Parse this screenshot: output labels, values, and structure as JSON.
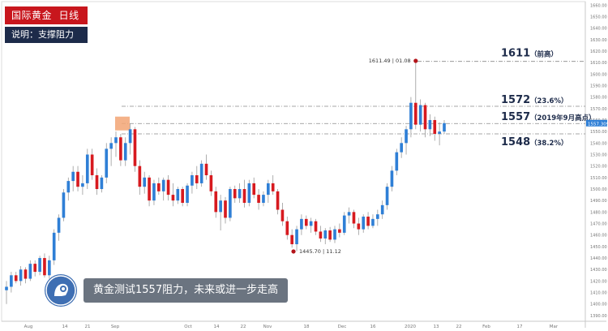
{
  "header": {
    "title": "国际黄金  日线",
    "subtitle": "说明：支撑阻力"
  },
  "caption": {
    "text": "黄金测试1557阻力，未来或进一步走高"
  },
  "colors": {
    "up": "#2f7fd6",
    "down": "#d71a1f",
    "title_bg": "#c8161d",
    "note_bg": "#1d2b4a",
    "caption_bg": "#6b7480",
    "label_text": "#1d2b4a"
  },
  "chart_data": {
    "type": "candlestick",
    "instrument": "国际黄金",
    "timeframe": "日线",
    "x_labels": [
      "Aug",
      "14",
      "21",
      "Sep",
      "Oct",
      "14",
      "22",
      "Nov",
      "18",
      "Dec",
      "16",
      "2020",
      "13",
      "22",
      "Feb",
      "17",
      "Mar"
    ],
    "y_ticks": [
      1390,
      1400,
      1410,
      1420,
      1430,
      1440,
      1450,
      1460,
      1470,
      1480,
      1490,
      1500,
      1510,
      1520,
      1530,
      1540,
      1550,
      1560,
      1570,
      1580,
      1590,
      1600,
      1610,
      1620,
      1630,
      1640,
      1650,
      1660
    ],
    "ylim": [
      1385,
      1663
    ],
    "levels": [
      {
        "value": 1611,
        "label": "1611",
        "note": "（前高）"
      },
      {
        "value": 1572,
        "label": "1572",
        "note": "（23.6%）"
      },
      {
        "value": 1557,
        "label": "1557",
        "note": "（2019年9月高点）"
      },
      {
        "value": 1548,
        "label": "1548",
        "note": "（38.2%）"
      }
    ],
    "annotations": [
      {
        "text": "1611.49 | 01.08",
        "value": 1611.49
      },
      {
        "text": "1445.70 | 11.12",
        "value": 1445.7
      }
    ],
    "current_price": "1557.309",
    "candles": [
      {
        "o": 1412,
        "h": 1420,
        "l": 1400,
        "c": 1415
      },
      {
        "o": 1415,
        "h": 1428,
        "l": 1410,
        "c": 1425
      },
      {
        "o": 1425,
        "h": 1428,
        "l": 1418,
        "c": 1420
      },
      {
        "o": 1420,
        "h": 1433,
        "l": 1416,
        "c": 1430
      },
      {
        "o": 1430,
        "h": 1432,
        "l": 1418,
        "c": 1422
      },
      {
        "o": 1422,
        "h": 1438,
        "l": 1420,
        "c": 1435
      },
      {
        "o": 1435,
        "h": 1438,
        "l": 1424,
        "c": 1428
      },
      {
        "o": 1428,
        "h": 1442,
        "l": 1425,
        "c": 1440
      },
      {
        "o": 1440,
        "h": 1444,
        "l": 1423,
        "c": 1425
      },
      {
        "o": 1425,
        "h": 1442,
        "l": 1422,
        "c": 1438
      },
      {
        "o": 1438,
        "h": 1465,
        "l": 1434,
        "c": 1462
      },
      {
        "o": 1462,
        "h": 1478,
        "l": 1455,
        "c": 1475
      },
      {
        "o": 1475,
        "h": 1500,
        "l": 1472,
        "c": 1497
      },
      {
        "o": 1497,
        "h": 1510,
        "l": 1490,
        "c": 1507
      },
      {
        "o": 1507,
        "h": 1520,
        "l": 1498,
        "c": 1515
      },
      {
        "o": 1515,
        "h": 1520,
        "l": 1498,
        "c": 1502
      },
      {
        "o": 1502,
        "h": 1512,
        "l": 1495,
        "c": 1505
      },
      {
        "o": 1505,
        "h": 1535,
        "l": 1500,
        "c": 1530
      },
      {
        "o": 1530,
        "h": 1535,
        "l": 1508,
        "c": 1512
      },
      {
        "o": 1512,
        "h": 1518,
        "l": 1495,
        "c": 1500
      },
      {
        "o": 1500,
        "h": 1512,
        "l": 1497,
        "c": 1510
      },
      {
        "o": 1510,
        "h": 1540,
        "l": 1505,
        "c": 1535
      },
      {
        "o": 1535,
        "h": 1545,
        "l": 1520,
        "c": 1540
      },
      {
        "o": 1540,
        "h": 1550,
        "l": 1528,
        "c": 1545
      },
      {
        "o": 1545,
        "h": 1548,
        "l": 1520,
        "c": 1525
      },
      {
        "o": 1525,
        "h": 1545,
        "l": 1520,
        "c": 1540
      },
      {
        "o": 1540,
        "h": 1557,
        "l": 1530,
        "c": 1552
      },
      {
        "o": 1552,
        "h": 1554,
        "l": 1515,
        "c": 1520
      },
      {
        "o": 1520,
        "h": 1525,
        "l": 1495,
        "c": 1502
      },
      {
        "o": 1502,
        "h": 1515,
        "l": 1496,
        "c": 1510
      },
      {
        "o": 1510,
        "h": 1512,
        "l": 1485,
        "c": 1490
      },
      {
        "o": 1490,
        "h": 1508,
        "l": 1486,
        "c": 1505
      },
      {
        "o": 1505,
        "h": 1510,
        "l": 1495,
        "c": 1498
      },
      {
        "o": 1498,
        "h": 1510,
        "l": 1490,
        "c": 1508
      },
      {
        "o": 1508,
        "h": 1512,
        "l": 1490,
        "c": 1495
      },
      {
        "o": 1495,
        "h": 1505,
        "l": 1485,
        "c": 1490
      },
      {
        "o": 1490,
        "h": 1502,
        "l": 1487,
        "c": 1500
      },
      {
        "o": 1500,
        "h": 1502,
        "l": 1485,
        "c": 1488
      },
      {
        "o": 1488,
        "h": 1505,
        "l": 1485,
        "c": 1503
      },
      {
        "o": 1503,
        "h": 1515,
        "l": 1496,
        "c": 1512
      },
      {
        "o": 1512,
        "h": 1520,
        "l": 1500,
        "c": 1505
      },
      {
        "o": 1505,
        "h": 1525,
        "l": 1502,
        "c": 1522
      },
      {
        "o": 1522,
        "h": 1530,
        "l": 1508,
        "c": 1512
      },
      {
        "o": 1512,
        "h": 1516,
        "l": 1494,
        "c": 1498
      },
      {
        "o": 1498,
        "h": 1502,
        "l": 1475,
        "c": 1480
      },
      {
        "o": 1480,
        "h": 1495,
        "l": 1464,
        "c": 1490
      },
      {
        "o": 1490,
        "h": 1493,
        "l": 1470,
        "c": 1475
      },
      {
        "o": 1475,
        "h": 1502,
        "l": 1472,
        "c": 1500
      },
      {
        "o": 1500,
        "h": 1503,
        "l": 1488,
        "c": 1492
      },
      {
        "o": 1492,
        "h": 1505,
        "l": 1488,
        "c": 1500
      },
      {
        "o": 1500,
        "h": 1508,
        "l": 1484,
        "c": 1488
      },
      {
        "o": 1488,
        "h": 1508,
        "l": 1485,
        "c": 1505
      },
      {
        "o": 1505,
        "h": 1510,
        "l": 1492,
        "c": 1495
      },
      {
        "o": 1495,
        "h": 1500,
        "l": 1482,
        "c": 1488
      },
      {
        "o": 1488,
        "h": 1498,
        "l": 1485,
        "c": 1495
      },
      {
        "o": 1495,
        "h": 1508,
        "l": 1488,
        "c": 1505
      },
      {
        "o": 1505,
        "h": 1512,
        "l": 1495,
        "c": 1498
      },
      {
        "o": 1498,
        "h": 1500,
        "l": 1478,
        "c": 1482
      },
      {
        "o": 1482,
        "h": 1488,
        "l": 1468,
        "c": 1472
      },
      {
        "o": 1472,
        "h": 1476,
        "l": 1456,
        "c": 1460
      },
      {
        "o": 1460,
        "h": 1465,
        "l": 1449,
        "c": 1452
      },
      {
        "o": 1452,
        "h": 1468,
        "l": 1446,
        "c": 1465
      },
      {
        "o": 1465,
        "h": 1478,
        "l": 1460,
        "c": 1474
      },
      {
        "o": 1474,
        "h": 1477,
        "l": 1465,
        "c": 1468
      },
      {
        "o": 1468,
        "h": 1475,
        "l": 1462,
        "c": 1472
      },
      {
        "o": 1472,
        "h": 1474,
        "l": 1460,
        "c": 1463
      },
      {
        "o": 1463,
        "h": 1468,
        "l": 1454,
        "c": 1457
      },
      {
        "o": 1457,
        "h": 1466,
        "l": 1452,
        "c": 1464
      },
      {
        "o": 1464,
        "h": 1467,
        "l": 1454,
        "c": 1456
      },
      {
        "o": 1456,
        "h": 1468,
        "l": 1453,
        "c": 1465
      },
      {
        "o": 1465,
        "h": 1470,
        "l": 1458,
        "c": 1462
      },
      {
        "o": 1462,
        "h": 1480,
        "l": 1460,
        "c": 1477
      },
      {
        "o": 1477,
        "h": 1484,
        "l": 1470,
        "c": 1480
      },
      {
        "o": 1480,
        "h": 1482,
        "l": 1466,
        "c": 1470
      },
      {
        "o": 1470,
        "h": 1475,
        "l": 1460,
        "c": 1465
      },
      {
        "o": 1465,
        "h": 1478,
        "l": 1462,
        "c": 1476
      },
      {
        "o": 1476,
        "h": 1480,
        "l": 1465,
        "c": 1468
      },
      {
        "o": 1468,
        "h": 1478,
        "l": 1466,
        "c": 1474
      },
      {
        "o": 1474,
        "h": 1482,
        "l": 1468,
        "c": 1478
      },
      {
        "o": 1478,
        "h": 1490,
        "l": 1474,
        "c": 1486
      },
      {
        "o": 1486,
        "h": 1505,
        "l": 1482,
        "c": 1502
      },
      {
        "o": 1502,
        "h": 1520,
        "l": 1498,
        "c": 1516
      },
      {
        "o": 1516,
        "h": 1535,
        "l": 1512,
        "c": 1532
      },
      {
        "o": 1532,
        "h": 1545,
        "l": 1527,
        "c": 1540
      },
      {
        "o": 1540,
        "h": 1555,
        "l": 1530,
        "c": 1552
      },
      {
        "o": 1552,
        "h": 1580,
        "l": 1545,
        "c": 1575
      },
      {
        "o": 1575,
        "h": 1611.49,
        "l": 1552,
        "c": 1556
      },
      {
        "o": 1556,
        "h": 1578,
        "l": 1550,
        "c": 1573
      },
      {
        "o": 1573,
        "h": 1575,
        "l": 1545,
        "c": 1552
      },
      {
        "o": 1552,
        "h": 1565,
        "l": 1546,
        "c": 1560
      },
      {
        "o": 1560,
        "h": 1563,
        "l": 1542,
        "c": 1548
      },
      {
        "o": 1548,
        "h": 1558,
        "l": 1538,
        "c": 1550
      },
      {
        "o": 1550,
        "h": 1560,
        "l": 1548,
        "c": 1557.3
      }
    ]
  }
}
